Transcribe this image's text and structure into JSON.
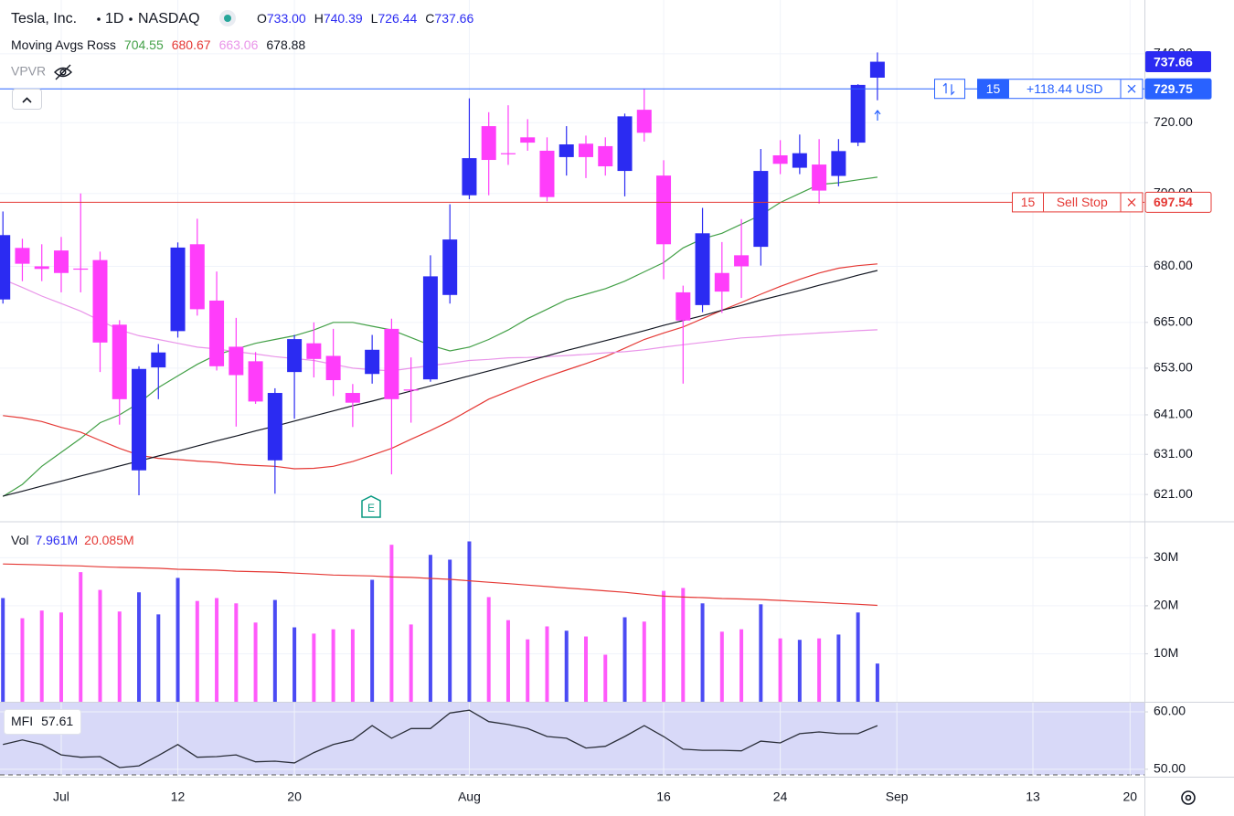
{
  "chart_data": [
    {
      "type": "candlestick",
      "symbol": "Tesla, Inc.",
      "interval": "1D",
      "exchange": "NASDAQ",
      "ohlc_legend": [
        {
          "key": "O",
          "value": "733.00"
        },
        {
          "key": "H",
          "value": "740.39"
        },
        {
          "key": "L",
          "value": "726.44"
        },
        {
          "key": "C",
          "value": "737.66"
        }
      ],
      "overlay_title": "Moving Avgs Ross",
      "hidden_indicator": "VPVR",
      "earnings_label": "E",
      "up_color": "#2b2bf2",
      "down_color": "#ff3dfa",
      "log": true,
      "grid": true,
      "ylim": [
        614.3,
        756
      ],
      "yticks": [
        {
          "value": 740,
          "label": "740.00"
        },
        {
          "value": 720,
          "label": "720.00"
        },
        {
          "value": 700,
          "label": "700.00"
        },
        {
          "value": 680,
          "label": "680.00"
        },
        {
          "value": 665,
          "label": "665.00"
        },
        {
          "value": 653,
          "label": "653.00"
        },
        {
          "value": 641,
          "label": "641.00"
        },
        {
          "value": 631,
          "label": "631.00"
        },
        {
          "value": 621,
          "label": "621.00"
        }
      ],
      "categories": [
        null,
        null,
        null,
        "Jul",
        null,
        null,
        null,
        null,
        null,
        "12",
        null,
        null,
        null,
        null,
        null,
        "20",
        null,
        null,
        null,
        null,
        null,
        null,
        null,
        null,
        "Aug",
        null,
        null,
        null,
        null,
        null,
        null,
        null,
        null,
        null,
        "16",
        null,
        null,
        null,
        null,
        null,
        "24",
        null,
        null,
        null,
        null,
        null,
        "Sep",
        null,
        null,
        null,
        null,
        null,
        null,
        "13",
        null,
        null,
        null,
        null,
        "20"
      ],
      "open": [
        671.1,
        685.0,
        680.0,
        684.3,
        679.4,
        681.7,
        664.4,
        627.0,
        653.2,
        662.7,
        686.0,
        670.8,
        658.6,
        654.8,
        629.5,
        652.0,
        659.5,
        656.2,
        646.6,
        651.5,
        663.3,
        647.5,
        650.1,
        672.3,
        699.5,
        719.0,
        711.3,
        715.8,
        712.0,
        710.2,
        714.0,
        713.3,
        706.3,
        723.7,
        705.0,
        673.0,
        669.6,
        678.2,
        683.0,
        685.3,
        710.7,
        707.2,
        708.1,
        704.9,
        714.3,
        733.0,
        null,
        null,
        null,
        null,
        null,
        null,
        null,
        null,
        null,
        null,
        null,
        null,
        null
      ],
      "high": [
        695.0,
        687.5,
        686.0,
        688.0,
        700.0,
        684.0,
        665.6,
        653.5,
        659.3,
        686.5,
        693.0,
        678.6,
        666.2,
        657.2,
        647.8,
        661.7,
        665.0,
        663.3,
        648.9,
        661.7,
        666.0,
        655.8,
        683.0,
        697.0,
        727.0,
        723.0,
        725.0,
        721.0,
        715.8,
        719.0,
        716.3,
        715.8,
        722.6,
        729.8,
        709.3,
        674.8,
        696.0,
        686.6,
        692.9,
        712.5,
        715.0,
        716.6,
        715.3,
        715.3,
        731.1,
        740.39,
        null,
        null,
        null,
        null,
        null,
        null,
        null,
        null,
        null,
        null,
        null,
        null,
        null
      ],
      "low": [
        670.0,
        676.0,
        676.0,
        673.0,
        673.0,
        652.0,
        638.5,
        620.8,
        645.0,
        661.0,
        666.8,
        652.4,
        638.0,
        643.8,
        621.2,
        640.0,
        650.6,
        645.8,
        637.9,
        649.0,
        626.0,
        639.0,
        649.5,
        670.0,
        698.4,
        699.5,
        708.0,
        712.0,
        697.8,
        705.0,
        704.3,
        705.0,
        699.2,
        714.6,
        676.5,
        649.0,
        667.7,
        667.5,
        671.5,
        680.2,
        705.4,
        705.4,
        697.2,
        702.0,
        713.3,
        726.44,
        null,
        null,
        null,
        null,
        null,
        null,
        null,
        null,
        null,
        null,
        null,
        null,
        null
      ],
      "close": [
        688.5,
        680.7,
        679.3,
        678.2,
        679.2,
        659.7,
        645.0,
        652.8,
        657.1,
        685.1,
        668.5,
        653.5,
        651.2,
        644.4,
        646.6,
        660.6,
        655.4,
        649.9,
        644.1,
        657.8,
        645.0,
        647.2,
        677.3,
        687.3,
        709.9,
        709.4,
        711.0,
        714.3,
        699.0,
        713.8,
        710.2,
        707.6,
        721.8,
        717.1,
        686.0,
        665.5,
        689.0,
        673.2,
        680.0,
        706.3,
        708.3,
        711.3,
        700.8,
        711.9,
        730.9,
        737.66,
        null,
        null,
        null,
        null,
        null,
        null,
        null,
        null,
        null,
        null,
        null,
        null,
        null
      ],
      "series": [
        {
          "color": "#43a047",
          "values": [
            620.5,
            623.5,
            628,
            631.5,
            635,
            639,
            641,
            644,
            648,
            651,
            654,
            656.5,
            658,
            659.5,
            660.5,
            661.5,
            663,
            665,
            665,
            664,
            663,
            661,
            659,
            657.5,
            658.5,
            660.5,
            663,
            666,
            668.5,
            671,
            672.5,
            674,
            676,
            678.5,
            681,
            685,
            687.5,
            689,
            691.5,
            694,
            697.5,
            700,
            702.5,
            703,
            703.8,
            704.55,
            null,
            null,
            null,
            null,
            null,
            null,
            null,
            null,
            null,
            null,
            null,
            null,
            null
          ]
        },
        {
          "color": "#e53935",
          "values": [
            640.8,
            640.2,
            639.3,
            637.8,
            636.6,
            634.5,
            632.5,
            630.8,
            630,
            629.7,
            629.3,
            629,
            628.5,
            628.2,
            628,
            627.4,
            627.5,
            628,
            629.2,
            630.8,
            632.5,
            634.8,
            637,
            639.4,
            642.2,
            645,
            647,
            649,
            650.8,
            652.5,
            654.2,
            656,
            658.2,
            660.5,
            662.2,
            663.8,
            666,
            668.2,
            670.3,
            672.5,
            674.6,
            676.5,
            678.2,
            679.5,
            680.2,
            680.67,
            null,
            null,
            null,
            null,
            null,
            null,
            null,
            null,
            null,
            null,
            null,
            null,
            null
          ]
        },
        {
          "color": "#e994e9",
          "values": [
            676.5,
            674.3,
            672,
            670,
            668,
            665.5,
            663,
            661.5,
            660.5,
            659.5,
            658.5,
            658,
            657.3,
            656.7,
            656,
            655.5,
            655,
            654,
            653,
            652.6,
            652.3,
            653,
            653.7,
            654.3,
            655,
            655.3,
            655.7,
            655.8,
            656,
            656.3,
            656.6,
            657,
            657.3,
            657.8,
            658.5,
            659.1,
            659.7,
            660.3,
            660.9,
            661.2,
            661.6,
            661.9,
            662.2,
            662.5,
            662.8,
            663.06,
            null,
            null,
            null,
            null,
            null,
            null,
            null,
            null,
            null,
            null,
            null,
            null,
            null
          ]
        },
        {
          "color": "#131722",
          "values": [
            620.6,
            621.8,
            623.1,
            624.3,
            625.6,
            626.8,
            628.1,
            629.3,
            630.6,
            631.8,
            633.1,
            634.4,
            635.6,
            636.9,
            638.1,
            639.4,
            640.7,
            642.0,
            643.3,
            644.5,
            645.8,
            647.1,
            648.4,
            649.7,
            651.0,
            652.3,
            653.6,
            654.9,
            656.2,
            657.6,
            658.9,
            660.2,
            661.5,
            662.8,
            664.2,
            665.5,
            666.8,
            668.2,
            669.5,
            670.9,
            672.2,
            673.5,
            674.9,
            676.2,
            677.6,
            678.88,
            null,
            null,
            null,
            null,
            null,
            null,
            null,
            null,
            null,
            null,
            null,
            null,
            null
          ]
        }
      ],
      "price_lines": [
        {
          "price": 729.75,
          "qty": 15,
          "text": "+118.44 USD",
          "color": "#2962ff"
        },
        {
          "price": 697.54,
          "qty": 15,
          "text": "Sell Stop",
          "color": "#e53935"
        }
      ]
    },
    {
      "type": "bar",
      "title": "Vol",
      "grid": true,
      "ylim": [
        0,
        37.3
      ],
      "yticks": [
        {
          "value": 10,
          "label": "10M"
        },
        {
          "value": 20,
          "label": "20M"
        },
        {
          "value": 30,
          "label": "30M"
        }
      ],
      "series": [
        {
          "values": [
            21.6,
            17.4,
            19.0,
            18.6,
            27.0,
            23.3,
            18.8,
            22.8,
            18.2,
            25.8,
            21.0,
            21.6,
            20.5,
            16.5,
            21.2,
            15.5,
            14.2,
            15.1,
            15.1,
            25.4,
            32.7,
            16.1,
            30.6,
            29.6,
            33.4,
            21.8,
            17.0,
            13.0,
            15.7,
            14.8,
            13.6,
            9.8,
            17.6,
            16.7,
            23.1,
            23.7,
            20.5,
            14.6,
            15.1,
            20.3,
            13.2,
            12.9,
            13.2,
            14.0,
            18.6,
            7.961,
            null,
            null,
            null,
            null,
            null,
            null,
            null,
            null,
            null,
            null,
            null,
            null,
            null
          ],
          "legend_value": "7.961M",
          "color": "#2b2bf2"
        },
        {
          "values": [
            28.7,
            28.6,
            28.5,
            28.4,
            28.3,
            28.1,
            28.0,
            27.9,
            27.8,
            27.6,
            27.5,
            27.4,
            27.2,
            27.1,
            27.0,
            26.8,
            26.6,
            26.4,
            26.3,
            26.2,
            26.0,
            25.9,
            25.7,
            25.5,
            25.2,
            24.9,
            24.6,
            24.3,
            24.0,
            23.7,
            23.4,
            23.1,
            22.8,
            22.4,
            22.0,
            21.8,
            21.7,
            21.5,
            21.4,
            21.3,
            21.1,
            20.9,
            20.7,
            20.5,
            20.3,
            20.085,
            null,
            null,
            null,
            null,
            null,
            null,
            null,
            null,
            null,
            null,
            null,
            null,
            null
          ],
          "legend_value": "20.085M",
          "color": "#e53935"
        }
      ]
    },
    {
      "type": "line",
      "title": "MFI",
      "grid": true,
      "ylim": [
        48.7,
        61.6
      ],
      "yticks": [
        {
          "value": 60,
          "label": "60.00"
        },
        {
          "value": 50,
          "label": "50.00"
        }
      ],
      "series": [
        {
          "color": "#2a2e39",
          "values": [
            54.3,
            55.1,
            54.3,
            52.5,
            52.1,
            52.2,
            50.3,
            50.6,
            52.4,
            54.3,
            52.1,
            52.2,
            52.5,
            51.3,
            51.4,
            51.1,
            52.9,
            54.3,
            55.1,
            57.6,
            55.4,
            57.1,
            57.1,
            59.8,
            60.3,
            58.3,
            57.8,
            57.1,
            55.7,
            55.4,
            53.7,
            54.0,
            55.7,
            57.6,
            55.7,
            53.5,
            53.3,
            53.3,
            53.2,
            54.9,
            54.6,
            56.2,
            56.5,
            56.2,
            56.2,
            57.61,
            null,
            null,
            null,
            null,
            null,
            null,
            null,
            null,
            null,
            null,
            null,
            null,
            null
          ]
        }
      ]
    }
  ]
}
